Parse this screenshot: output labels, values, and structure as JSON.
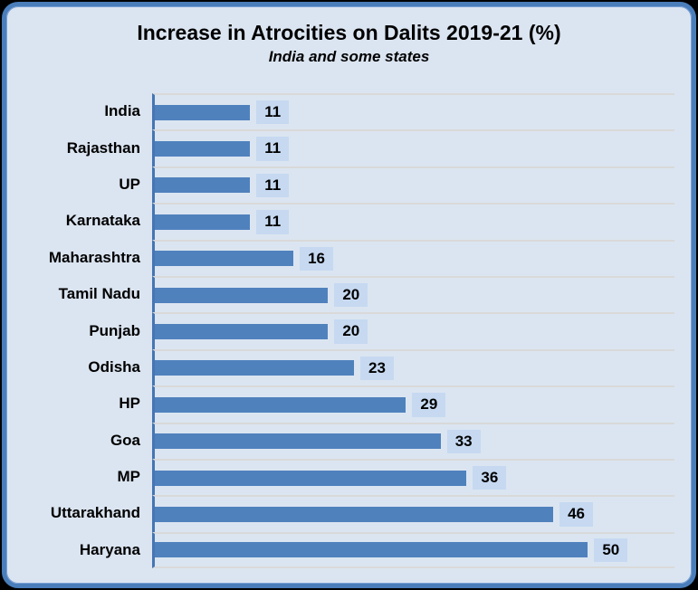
{
  "chart_data": {
    "type": "bar",
    "orientation": "horizontal",
    "title": "Increase in Atrocities on Dalits 2019-21 (%)",
    "subtitle": "India and some states",
    "categories": [
      "India",
      "Rajasthan",
      "UP",
      "Karnataka",
      "Maharashtra",
      "Tamil Nadu",
      "Punjab",
      "Odisha",
      "HP",
      "Goa",
      "MP",
      "Uttarakhand",
      "Haryana"
    ],
    "values": [
      11,
      11,
      11,
      11,
      16,
      20,
      20,
      23,
      29,
      33,
      36,
      46,
      50
    ],
    "data_labels": [
      "11",
      "11",
      "11",
      "11",
      "16",
      "20",
      "20",
      "23",
      "29",
      "33",
      "36",
      "46",
      "50"
    ],
    "xlim": [
      0,
      60
    ],
    "grid": true,
    "legend": false,
    "colors": {
      "bar": "#4f81bd",
      "axis_line": "#4575b4",
      "chart_background": "#dbe5f1",
      "chart_border": "#4a7ebb",
      "gridline": "#d9d9d9",
      "value_label_background": "#c6d9f1",
      "text": "#000000",
      "page_background": "#000000"
    }
  }
}
